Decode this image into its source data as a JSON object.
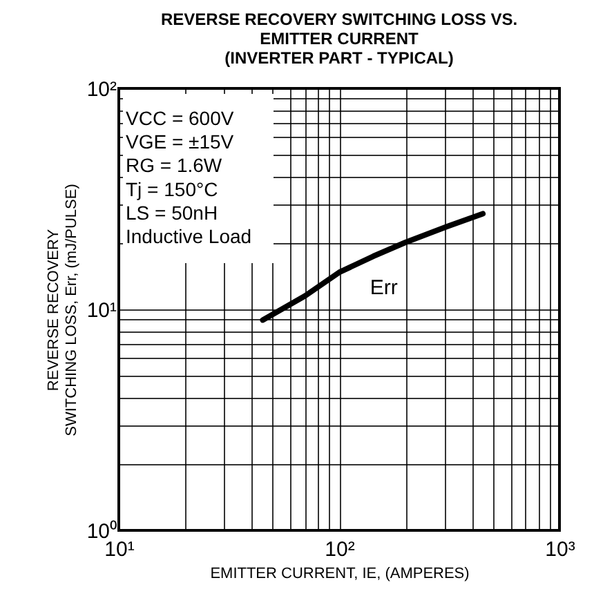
{
  "chart_data": {
    "type": "line",
    "title": [
      "REVERSE RECOVERY SWITCHING LOSS VS.",
      "EMITTER CURRENT",
      "(INVERTER PART - TYPICAL)"
    ],
    "xlabel": "EMITTER CURRENT, IE, (AMPERES)",
    "ylabel": [
      "REVERSE RECOVERY",
      "SWITCHING LOSS, Err, (mJ/PULSE)"
    ],
    "x": [
      45,
      70,
      100,
      143,
      200,
      309,
      449
    ],
    "series": [
      {
        "name": "Err",
        "color": "#000000",
        "values": [
          8.95,
          11.5,
          14.7,
          17.4,
          20.1,
          23.7,
          27.1
        ]
      }
    ],
    "log": "xy",
    "xlim": [
      10,
      1000
    ],
    "ylim": [
      1,
      100
    ],
    "xticks": [
      {
        "value": 10,
        "label": "10¹"
      },
      {
        "value": 20,
        "label": null
      },
      {
        "value": 30,
        "label": null
      },
      {
        "value": 40,
        "label": null
      },
      {
        "value": 50,
        "label": null
      },
      {
        "value": 60,
        "label": null
      },
      {
        "value": 70,
        "label": null
      },
      {
        "value": 80,
        "label": null
      },
      {
        "value": 90,
        "label": null
      },
      {
        "value": 100,
        "label": "10²"
      },
      {
        "value": 200,
        "label": null
      },
      {
        "value": 300,
        "label": null
      },
      {
        "value": 400,
        "label": null
      },
      {
        "value": 500,
        "label": null
      },
      {
        "value": 600,
        "label": null
      },
      {
        "value": 700,
        "label": null
      },
      {
        "value": 800,
        "label": null
      },
      {
        "value": 900,
        "label": null
      },
      {
        "value": 1000,
        "label": "10³"
      }
    ],
    "yticks": [
      {
        "value": 1,
        "label": "10⁰"
      },
      {
        "value": 2,
        "label": null
      },
      {
        "value": 3,
        "label": null
      },
      {
        "value": 4,
        "label": null
      },
      {
        "value": 5,
        "label": null
      },
      {
        "value": 6,
        "label": null
      },
      {
        "value": 7,
        "label": null
      },
      {
        "value": 8,
        "label": null
      },
      {
        "value": 9,
        "label": null
      },
      {
        "value": 10,
        "label": "10¹"
      },
      {
        "value": 20,
        "label": null
      },
      {
        "value": 30,
        "label": null
      },
      {
        "value": 40,
        "label": null
      },
      {
        "value": 50,
        "label": null
      },
      {
        "value": 60,
        "label": null
      },
      {
        "value": 70,
        "label": null
      },
      {
        "value": 80,
        "label": null
      },
      {
        "value": 90,
        "label": null
      },
      {
        "value": 100,
        "label": "10²"
      }
    ],
    "grid": true,
    "marker": "none",
    "line_style": "solid",
    "annotations": [
      "VCC = 600V",
      "VGE = ±15V",
      "RG = 1.6W",
      "Tj = 150°C",
      "LS = 50nH",
      "Inductive Load"
    ]
  }
}
